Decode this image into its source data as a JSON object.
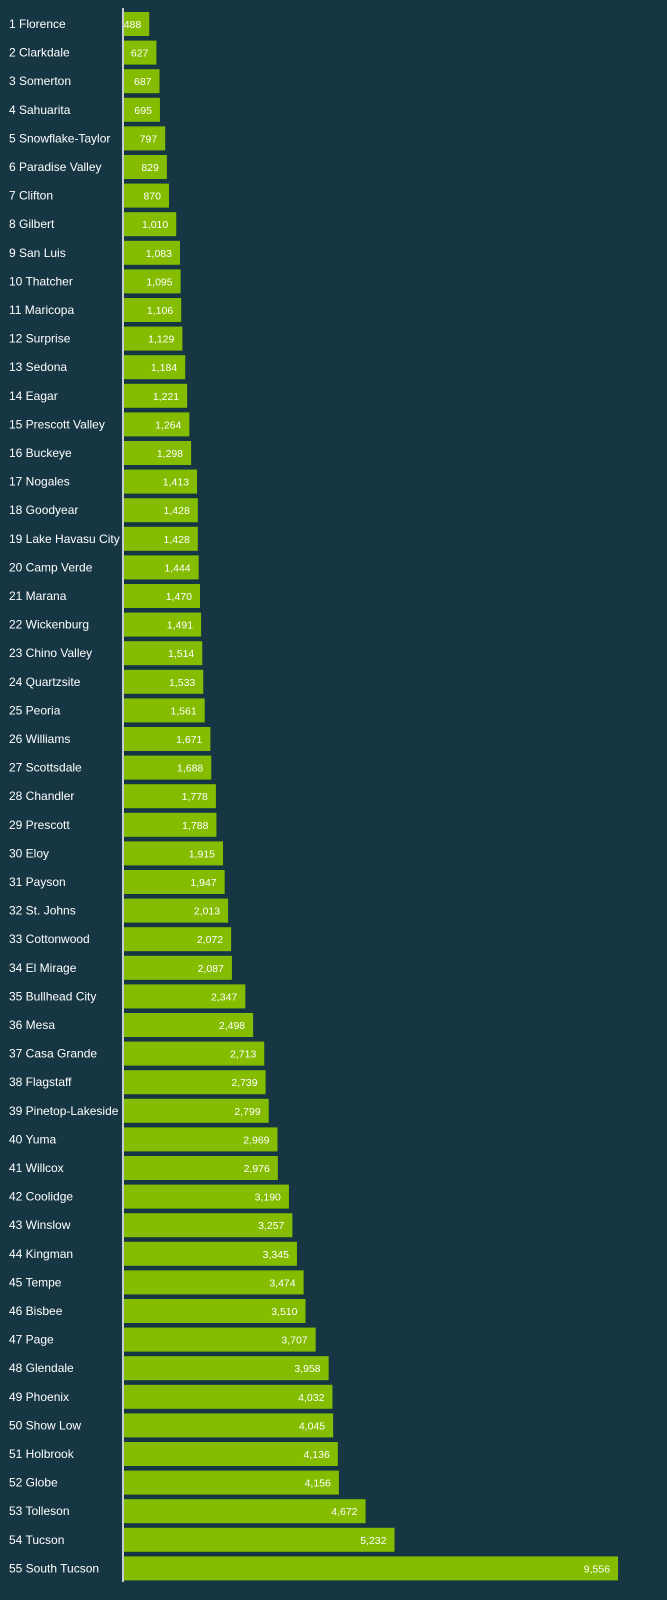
{
  "colors": {
    "background": "#163643",
    "bar": "#84bd00",
    "axis": "#ffffff",
    "text": "#ffffff"
  },
  "chart_data": {
    "type": "bar",
    "orientation": "horizontal",
    "title": "",
    "xlabel": "",
    "ylabel": "",
    "xlim": [
      0,
      10000
    ],
    "grid": false,
    "categories": [
      "1 Florence",
      "2 Clarkdale",
      "3 Somerton",
      "4 Sahuarita",
      "5 Snowflake-Taylor",
      "6 Paradise Valley",
      "7 Clifton",
      "8 Gilbert",
      "9 San Luis",
      "10 Thatcher",
      "11 Maricopa",
      "12 Surprise",
      "13 Sedona",
      "14 Eagar",
      "15 Prescott Valley",
      "16 Buckeye",
      "17 Nogales",
      "18 Goodyear",
      "19 Lake Havasu City",
      "20 Camp Verde",
      "21 Marana",
      "22 Wickenburg",
      "23 Chino Valley",
      "24 Quartzsite",
      "25 Peoria",
      "26 Williams",
      "27 Scottsdale",
      "28 Chandler",
      "29 Prescott",
      "30 Eloy",
      "31 Payson",
      "32 St. Johns",
      "33 Cottonwood",
      "34 El Mirage",
      "35 Bullhead City",
      "36 Mesa",
      "37 Casa Grande",
      "38 Flagstaff",
      "39 Pinetop-Lakeside",
      "40 Yuma",
      "41 Willcox",
      "42 Coolidge",
      "43 Winslow",
      "44 Kingman",
      "45 Tempe",
      "46 Bisbee",
      "47 Page",
      "48 Glendale",
      "49 Phoenix",
      "50 Show Low",
      "51 Holbrook",
      "52 Globe",
      "53 Tolleson",
      "54 Tucson",
      "55 South Tucson"
    ],
    "values": [
      488,
      627,
      687,
      695,
      797,
      829,
      870,
      1010,
      1083,
      1095,
      1106,
      1129,
      1184,
      1221,
      1264,
      1298,
      1413,
      1428,
      1428,
      1444,
      1470,
      1491,
      1514,
      1533,
      1561,
      1671,
      1688,
      1778,
      1788,
      1915,
      1947,
      2013,
      2072,
      2087,
      2347,
      2498,
      2713,
      2739,
      2799,
      2969,
      2976,
      3190,
      3257,
      3345,
      3474,
      3510,
      3707,
      3958,
      4032,
      4045,
      4136,
      4156,
      4672,
      5232,
      9556
    ],
    "value_labels": [
      "488",
      "627",
      "687",
      "695",
      "797",
      "829",
      "870",
      "1,010",
      "1,083",
      "1,095",
      "1,106",
      "1,129",
      "1,184",
      "1,221",
      "1,264",
      "1,298",
      "1,413",
      "1,428",
      "1,428",
      "1,444",
      "1,470",
      "1,491",
      "1,514",
      "1,533",
      "1,561",
      "1,671",
      "1,688",
      "1,778",
      "1,788",
      "1,915",
      "1,947",
      "2,013",
      "2,072",
      "2,087",
      "2,347",
      "2,498",
      "2,713",
      "2,739",
      "2,799",
      "2,969",
      "2,976",
      "3,190",
      "3,257",
      "3,345",
      "3,474",
      "3,510",
      "3,707",
      "3,958",
      "4,032",
      "4,045",
      "4,136",
      "4,156",
      "4,672",
      "5,232",
      "9,556"
    ]
  }
}
